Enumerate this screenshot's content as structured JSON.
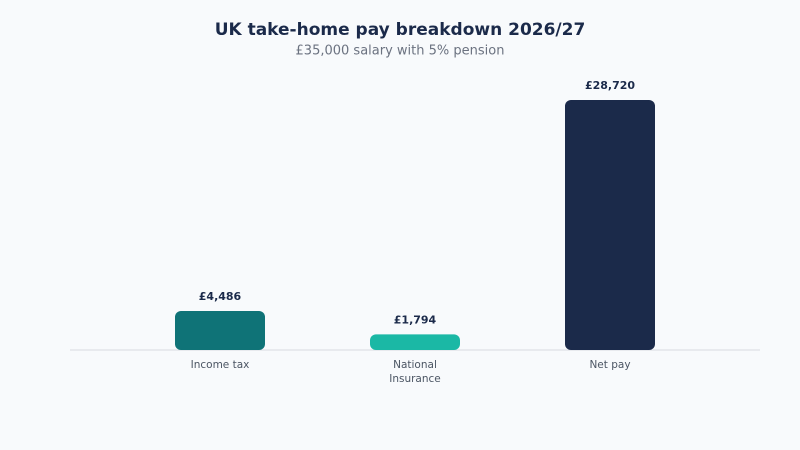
{
  "chart_data": {
    "type": "bar",
    "title": "UK take-home pay breakdown 2026/27",
    "subtitle": "£35,000 salary with 5% pension",
    "categories": [
      "Income tax",
      "National Insurance",
      "Net pay"
    ],
    "values": [
      4486,
      1794,
      28720
    ],
    "value_labels": [
      "£4,486",
      "£1,794",
      "£28,720"
    ],
    "colors": [
      "#0f7377",
      "#1bb8a5",
      "#1b2a4a"
    ]
  }
}
